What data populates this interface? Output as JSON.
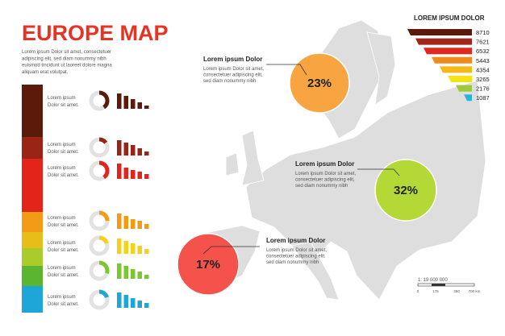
{
  "title": "EUROPE MAP",
  "intro": [
    "Lorem ipsum Dolor sit amet, consectetuer",
    "adipiscing elit, sed diam nonummy nibh",
    "euismod tincidunt ut laoreet dolore magna",
    "aliquam erat volutpat."
  ],
  "rows": [
    {
      "label": [
        "Lorem ipsum",
        "Dolor sit amet."
      ],
      "color": "#5c1a0b",
      "donut": 40,
      "bars": [
        95,
        80,
        60,
        40,
        20
      ]
    },
    {
      "label": [
        "Lorem ipsum",
        "Dolor sit amet."
      ],
      "color": "#9a2516",
      "donut": 15,
      "bars": [
        95,
        80,
        65,
        45,
        25
      ]
    },
    {
      "label": [
        "Lorem ipsum",
        "Dolor sit amet."
      ],
      "color": "#e2241b",
      "donut": 40,
      "bars": [
        95,
        70,
        55,
        45,
        30
      ]
    },
    {
      "label": [
        "Lorem ipsum",
        "Dolor sit amet."
      ],
      "color": "#f39a16",
      "donut": 25,
      "bars": [
        95,
        80,
        60,
        50,
        30
      ]
    },
    {
      "label": [
        "Lorem ipsum",
        "Dolor sit amet."
      ],
      "color": "#f3d21c",
      "donut": 20,
      "bars": [
        95,
        80,
        65,
        50,
        30
      ]
    },
    {
      "label": [
        "Lorem ipsum",
        "Dolor sit amet."
      ],
      "color": "#7cc631",
      "donut": 30,
      "bars": [
        95,
        80,
        60,
        45,
        25
      ]
    },
    {
      "label": [
        "Lorem ipsum",
        "Dolor sit amet."
      ],
      "color": "#1ea6d8",
      "donut": 20,
      "bars": [
        95,
        80,
        60,
        45,
        30
      ]
    }
  ],
  "callouts": [
    {
      "title": "Lorem ipsum Dolor",
      "text": [
        "Lorem ipsum Dolor sit amet,",
        "consectetuer adipiscing elit,",
        "sed diam nonummy nibh"
      ],
      "value": "23%",
      "color": "#f8a541"
    },
    {
      "title": "Lorem ipsum Dolor",
      "text": [
        "Lorem ipsum Dolor sit amet,",
        "consectetuer adipiscing elit,",
        "sed diam nonummy nibh"
      ],
      "value": "32%",
      "color": "#b4d936"
    },
    {
      "title": "Lorem ipsum Dolor",
      "text": [
        "Lorem ipsum Dolor sit amet,",
        "consectetuer adipiscing elit,",
        "sed diam nonummy nibh"
      ],
      "value": "17%",
      "color": "#f4524a"
    }
  ],
  "legend": {
    "title": "LOREM IPSUM DOLOR",
    "items": [
      {
        "value": 8710,
        "color": "#5a1a0c"
      },
      {
        "value": 7621,
        "color": "#a0261a"
      },
      {
        "value": 6532,
        "color": "#e3271b"
      },
      {
        "value": 5443,
        "color": "#f08a1a"
      },
      {
        "value": 4354,
        "color": "#f5b915"
      },
      {
        "value": 3265,
        "color": "#f5e316"
      },
      {
        "value": 2176,
        "color": "#9dc93a"
      },
      {
        "value": 1087,
        "color": "#2bb3df"
      }
    ]
  },
  "scale": {
    "ratio": "1: 19 000 000",
    "ticks": [
      "0",
      "175",
      "350",
      "700 km"
    ]
  }
}
